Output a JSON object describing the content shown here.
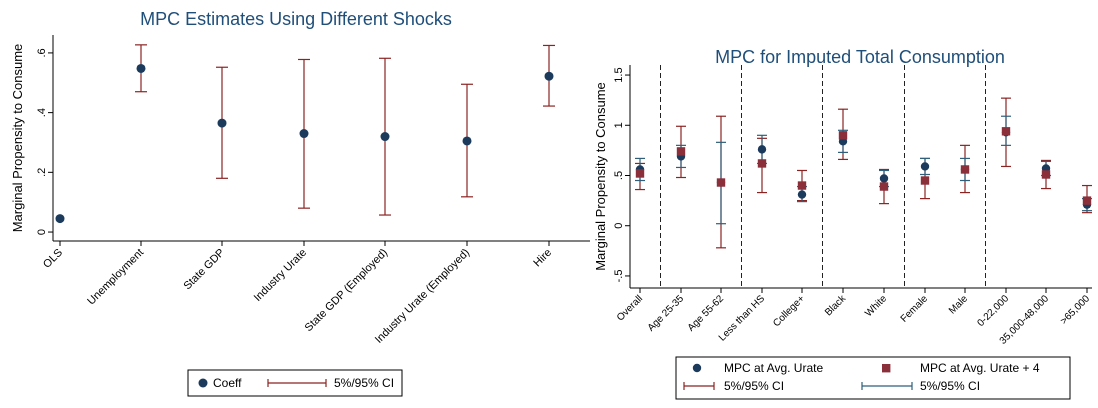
{
  "chart_data": [
    {
      "type": "scatter",
      "title": "MPC Estimates Using Different Shocks",
      "ylabel": "Marginal Propensity to Consume",
      "xlabel": "",
      "ylim": [
        -0.03,
        0.66
      ],
      "yticks": [
        0,
        0.2,
        0.4,
        0.6
      ],
      "ytick_labels": [
        "0",
        ".2",
        ".4",
        ".6"
      ],
      "categories": [
        "OLS",
        "Unemployment",
        "State GDP",
        "Industry Urate",
        "State GDP (Employed)",
        "Industry Urate (Employed)",
        "Hire"
      ],
      "series": [
        {
          "name": "Coeff",
          "values": [
            0.045,
            0.548,
            0.365,
            0.33,
            0.32,
            0.305,
            0.522
          ],
          "ci_low": [
            null,
            0.47,
            0.18,
            0.08,
            0.057,
            0.118,
            0.422
          ],
          "ci_high": [
            null,
            0.627,
            0.552,
            0.578,
            0.582,
            0.495,
            0.625
          ]
        }
      ],
      "legend": {
        "point_label": "Coeff",
        "ci_label": "5%/95% CI",
        "position": "bottom"
      },
      "colors": {
        "point": "#1b3a5c",
        "ci": "#8b2323",
        "title": "#1f4e79"
      }
    },
    {
      "type": "scatter",
      "title": "MPC for Imputed Total Consumption",
      "ylabel": "Marginal Propensity to Consume",
      "xlabel": "",
      "ylim": [
        -0.62,
        1.6
      ],
      "yticks": [
        -0.5,
        0,
        0.5,
        1,
        1.5
      ],
      "ytick_labels": [
        "-.5",
        "0",
        ".5",
        "1",
        "1.5"
      ],
      "categories": [
        "Overall",
        "Age 25-35",
        "Age 55-62",
        "Less than HS",
        "College+",
        "Black",
        "White",
        "Female",
        "Male",
        "0-22,000",
        "35,000-48,000",
        ">65,000"
      ],
      "group_dividers_after": [
        0,
        2,
        4,
        6,
        8
      ],
      "series": [
        {
          "name": "MPC at Avg. Urate",
          "values": [
            0.56,
            0.69,
            0.43,
            0.76,
            0.31,
            0.84,
            0.47,
            0.59,
            0.56,
            0.93,
            0.57,
            0.21
          ],
          "ci_low": [
            0.45,
            0.58,
            0.02,
            0.62,
            0.24,
            0.73,
            0.39,
            0.51,
            0.45,
            0.8,
            0.5,
            0.15
          ],
          "ci_high": [
            0.67,
            0.8,
            0.83,
            0.9,
            0.39,
            0.95,
            0.55,
            0.67,
            0.67,
            1.09,
            0.64,
            0.27
          ]
        },
        {
          "name": "MPC at Avg. Urate + 4",
          "values": [
            0.52,
            0.74,
            0.43,
            0.62,
            0.4,
            0.9,
            0.39,
            0.45,
            0.56,
            0.94,
            0.51,
            0.25
          ],
          "ci_low": [
            0.36,
            0.48,
            -0.22,
            0.33,
            0.25,
            0.66,
            0.22,
            0.27,
            0.33,
            0.59,
            0.37,
            0.13
          ],
          "ci_high": [
            0.62,
            0.99,
            1.09,
            0.87,
            0.55,
            1.16,
            0.56,
            0.67,
            0.8,
            1.27,
            0.65,
            0.4
          ]
        }
      ],
      "legend": {
        "entries": [
          "MPC at Avg. Urate",
          "MPC at Avg. Urate + 4",
          "5%/95% CI",
          "5%/95% CI"
        ],
        "position": "bottom"
      },
      "colors": {
        "navy": "#1b3a5c",
        "maroon": "#8b2f3b",
        "ci_red": "#8b2323",
        "ci_blue": "#2f5f7a",
        "title": "#1f4e79"
      }
    }
  ]
}
